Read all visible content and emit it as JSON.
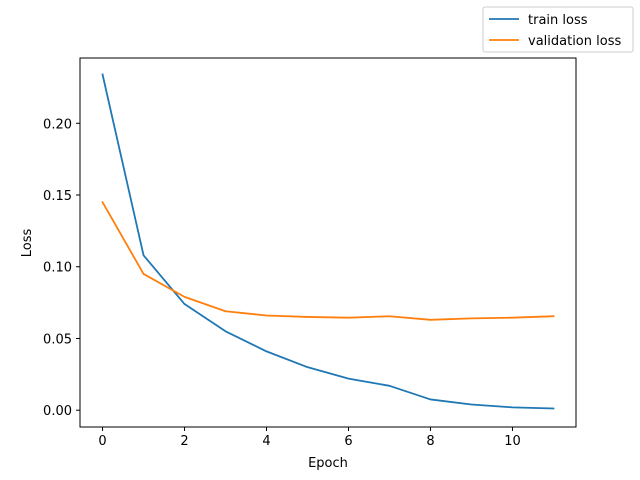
{
  "chart_data": {
    "type": "line",
    "title": "",
    "xlabel": "Epoch",
    "ylabel": "Loss",
    "x": [
      0,
      1,
      2,
      3,
      4,
      5,
      6,
      7,
      8,
      9,
      10,
      11
    ],
    "xlim": [
      -0.55,
      11.55
    ],
    "ylim": [
      -0.0117,
      0.2455
    ],
    "xticks": [
      0,
      2,
      4,
      6,
      8,
      10
    ],
    "yticks": [
      0.0,
      0.05,
      0.1,
      0.15,
      0.2
    ],
    "xtick_labels": [
      "0",
      "2",
      "4",
      "6",
      "8",
      "10"
    ],
    "ytick_labels": [
      "0.00",
      "0.05",
      "0.10",
      "0.15",
      "0.20"
    ],
    "grid": false,
    "legend_position": "top-right (outside axes)",
    "series": [
      {
        "name": "train loss",
        "color": "#1f77b4",
        "values": [
          0.234,
          0.108,
          0.074,
          0.055,
          0.041,
          0.03,
          0.022,
          0.017,
          0.0075,
          0.004,
          0.002,
          0.0012
        ]
      },
      {
        "name": "validation loss",
        "color": "#ff7f0e",
        "values": [
          0.145,
          0.095,
          0.079,
          0.069,
          0.066,
          0.065,
          0.0645,
          0.0655,
          0.063,
          0.064,
          0.0645,
          0.0655
        ]
      }
    ]
  }
}
